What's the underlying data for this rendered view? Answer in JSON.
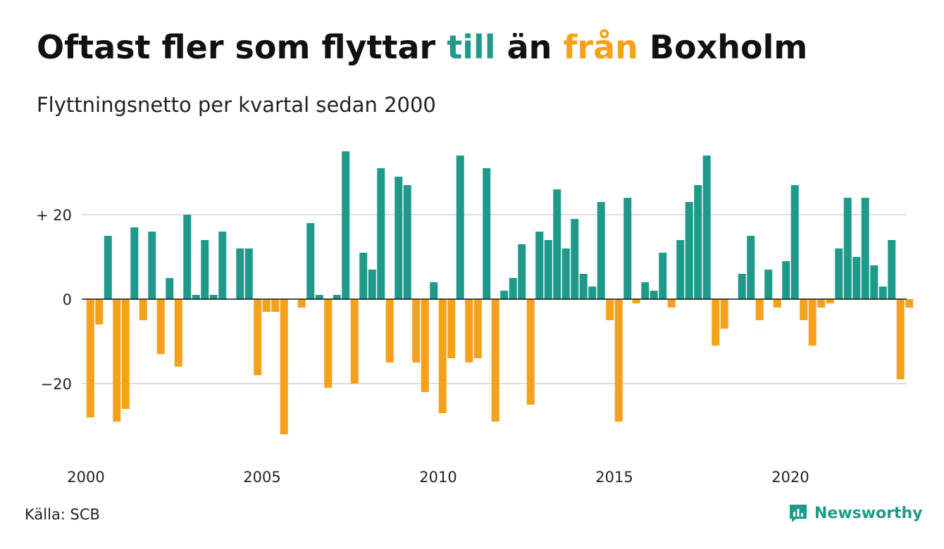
{
  "header": {
    "title_part1": "Oftast fler som flyttar ",
    "title_highlight1": "till",
    "title_part2": " än ",
    "title_highlight2": "från",
    "title_part3": " Boxholm",
    "subtitle": "Flyttningsnetto per kvartal sedan 2000"
  },
  "footer": {
    "source": "Källa: SCB",
    "brand": "Newsworthy"
  },
  "colors": {
    "positive": "#1f9a8a",
    "negative": "#f5a11c",
    "grid": "#dddddd",
    "zero_line": "#111111",
    "brand": "#1f9a8a"
  },
  "icons": {
    "brand_logo": "newsworthy-logo-icon"
  },
  "chart_data": {
    "type": "bar",
    "title": "Oftast fler som flyttar till än från Boxholm",
    "subtitle": "Flyttningsnetto per kvartal sedan 2000",
    "xlabel": "",
    "ylabel": "",
    "ylim": [
      -37,
      37
    ],
    "grid": true,
    "yticks": [
      {
        "value": 20,
        "label": "+ 20"
      },
      {
        "value": 0,
        "label": "0"
      },
      {
        "value": -20,
        "label": "−20"
      }
    ],
    "xticks": [
      {
        "label": "2000",
        "index": 0
      },
      {
        "label": "2005",
        "index": 20
      },
      {
        "label": "2010",
        "index": 40
      },
      {
        "label": "2015",
        "index": 60
      },
      {
        "label": "2020",
        "index": 80
      }
    ],
    "x_start": "2000 Q1",
    "frequency": "quarterly",
    "values": [
      -28,
      -6,
      15,
      -29,
      -26,
      17,
      -5,
      16,
      -13,
      5,
      -16,
      20,
      1,
      14,
      1,
      16,
      0,
      12,
      12,
      -18,
      -3,
      -3,
      -32,
      0,
      -2,
      18,
      1,
      -21,
      1,
      35,
      -20,
      11,
      7,
      31,
      -15,
      29,
      27,
      -15,
      -22,
      4,
      -27,
      -14,
      34,
      -15,
      -14,
      31,
      -29,
      2,
      5,
      13,
      -25,
      16,
      14,
      26,
      12,
      19,
      6,
      3,
      23,
      -5,
      -29,
      24,
      -1,
      4,
      2,
      11,
      -2,
      14,
      23,
      27,
      34,
      -11,
      -7,
      0,
      6,
      15,
      -5,
      7,
      -2,
      9,
      27,
      -5,
      -11,
      -2,
      -1,
      12,
      24,
      10,
      24,
      8,
      3,
      14,
      -19,
      -2
    ]
  }
}
